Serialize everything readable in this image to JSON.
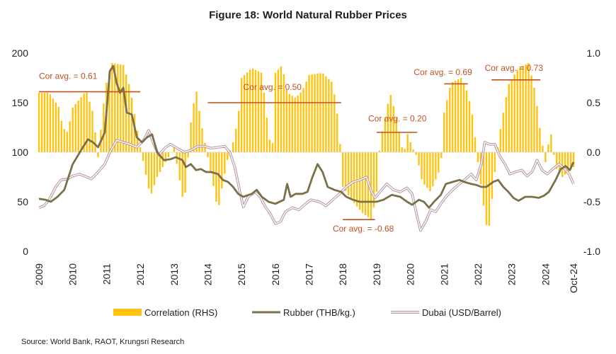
{
  "chart_data": {
    "type": "bar+line",
    "title": "Figure 18: World Natural Rubber Prices",
    "source": "Source: World Bank, RAOT, Krungsri Research",
    "left_axis": {
      "ticks": [
        "0",
        "50",
        "100",
        "150",
        "200"
      ],
      "range": [
        0,
        200
      ]
    },
    "right_axis": {
      "ticks": [
        "-1.0",
        "-0.5",
        "0.0",
        "0.5",
        "1.0"
      ],
      "range": [
        -1.0,
        1.0
      ]
    },
    "x_labels": [
      "2009",
      "2010",
      "2011",
      "2012",
      "2013",
      "2014",
      "2015",
      "2016",
      "2017",
      "2018",
      "2019",
      "2020",
      "2021",
      "2022",
      "2023",
      "2024",
      "Oct-24"
    ],
    "x_range": [
      2009.0,
      2024.83
    ],
    "legend": [
      "Correlation (RHS)",
      "Rubber (THB/kg.)",
      "Dubai (USD/Barrel)"
    ],
    "colors": {
      "correlation": "#FFC20E",
      "rubber": "#7A7049",
      "dubai_outer": "#B89AA3",
      "dubai_inner": "#ffffff",
      "annotation": "#C0521F"
    },
    "correlation_anchors": [
      [
        2009.0,
        0.6
      ],
      [
        2009.3,
        0.6
      ],
      [
        2009.6,
        0.45
      ],
      [
        2009.7,
        0.25
      ],
      [
        2009.85,
        0.2
      ],
      [
        2010.0,
        0.45
      ],
      [
        2010.4,
        0.62
      ],
      [
        2010.6,
        0.4
      ],
      [
        2010.75,
        -0.05
      ],
      [
        2010.9,
        0.45
      ],
      [
        2011.0,
        0.7
      ],
      [
        2011.15,
        0.9
      ],
      [
        2011.5,
        0.88
      ],
      [
        2011.7,
        0.65
      ],
      [
        2011.85,
        0.35
      ],
      [
        2012.0,
        0.05
      ],
      [
        2012.15,
        -0.2
      ],
      [
        2012.3,
        -0.45
      ],
      [
        2012.5,
        -0.25
      ],
      [
        2012.75,
        -0.1
      ],
      [
        2013.0,
        0.05
      ],
      [
        2013.15,
        -0.25
      ],
      [
        2013.3,
        -0.55
      ],
      [
        2013.5,
        0.3
      ],
      [
        2013.65,
        0.65
      ],
      [
        2013.8,
        0.3
      ],
      [
        2014.0,
        -0.05
      ],
      [
        2014.2,
        -0.4
      ],
      [
        2014.3,
        -0.6
      ],
      [
        2014.45,
        -0.3
      ],
      [
        2014.6,
        -0.05
      ],
      [
        2014.75,
        0.1
      ],
      [
        2014.9,
        0.35
      ],
      [
        2015.0,
        0.75
      ],
      [
        2015.3,
        0.85
      ],
      [
        2015.6,
        0.8
      ],
      [
        2015.75,
        0.35
      ],
      [
        2015.9,
        -0.05
      ],
      [
        2016.0,
        0.8
      ],
      [
        2016.2,
        0.88
      ],
      [
        2016.35,
        0.6
      ],
      [
        2016.6,
        0.55
      ],
      [
        2016.8,
        0.62
      ],
      [
        2017.0,
        0.78
      ],
      [
        2017.4,
        0.8
      ],
      [
        2017.7,
        0.7
      ],
      [
        2017.85,
        0.35
      ],
      [
        2017.95,
        -0.05
      ],
      [
        2018.0,
        -0.35
      ],
      [
        2018.3,
        -0.5
      ],
      [
        2018.6,
        -0.62
      ],
      [
        2018.85,
        -0.68
      ],
      [
        2019.0,
        -0.4
      ],
      [
        2019.1,
        0.1
      ],
      [
        2019.25,
        0.35
      ],
      [
        2019.4,
        0.6
      ],
      [
        2019.55,
        0.4
      ],
      [
        2019.7,
        0.15
      ],
      [
        2019.8,
        -0.05
      ],
      [
        2019.9,
        0.2
      ],
      [
        2020.05,
        0.05
      ],
      [
        2020.2,
        -0.05
      ],
      [
        2020.35,
        -0.3
      ],
      [
        2020.6,
        -0.4
      ],
      [
        2020.9,
        -0.15
      ],
      [
        2021.0,
        0.4
      ],
      [
        2021.2,
        0.7
      ],
      [
        2021.5,
        0.75
      ],
      [
        2021.7,
        0.6
      ],
      [
        2021.85,
        0.35
      ],
      [
        2022.0,
        -0.1
      ],
      [
        2022.15,
        -0.5
      ],
      [
        2022.3,
        -0.85
      ],
      [
        2022.5,
        -0.2
      ],
      [
        2022.6,
        0.1
      ],
      [
        2022.75,
        0.4
      ],
      [
        2022.9,
        0.68
      ],
      [
        2023.2,
        0.85
      ],
      [
        2023.5,
        0.9
      ],
      [
        2023.7,
        0.6
      ],
      [
        2023.85,
        0.2
      ],
      [
        2024.0,
        -0.1
      ],
      [
        2024.15,
        0.22
      ],
      [
        2024.3,
        -0.15
      ],
      [
        2024.5,
        -0.25
      ],
      [
        2024.83,
        -0.15
      ]
    ],
    "rubber_anchors": [
      [
        2009.0,
        53
      ],
      [
        2009.2,
        52
      ],
      [
        2009.35,
        50
      ],
      [
        2009.55,
        55
      ],
      [
        2009.75,
        62
      ],
      [
        2010.0,
        88
      ],
      [
        2010.3,
        105
      ],
      [
        2010.45,
        113
      ],
      [
        2010.6,
        110
      ],
      [
        2010.75,
        105
      ],
      [
        2010.95,
        120
      ],
      [
        2011.1,
        182
      ],
      [
        2011.2,
        187
      ],
      [
        2011.3,
        170
      ],
      [
        2011.4,
        160
      ],
      [
        2011.5,
        165
      ],
      [
        2011.6,
        140
      ],
      [
        2011.75,
        138
      ],
      [
        2011.9,
        115
      ],
      [
        2012.05,
        110
      ],
      [
        2012.2,
        115
      ],
      [
        2012.35,
        118
      ],
      [
        2012.5,
        100
      ],
      [
        2012.7,
        92
      ],
      [
        2012.9,
        93
      ],
      [
        2013.05,
        95
      ],
      [
        2013.25,
        92
      ],
      [
        2013.35,
        85
      ],
      [
        2013.5,
        88
      ],
      [
        2013.65,
        82
      ],
      [
        2013.8,
        83
      ],
      [
        2013.95,
        80
      ],
      [
        2014.1,
        80
      ],
      [
        2014.3,
        78
      ],
      [
        2014.45,
        72
      ],
      [
        2014.6,
        70
      ],
      [
        2014.75,
        65
      ],
      [
        2014.9,
        58
      ],
      [
        2015.05,
        55
      ],
      [
        2015.3,
        58
      ],
      [
        2015.45,
        62
      ],
      [
        2015.6,
        55
      ],
      [
        2015.8,
        50
      ],
      [
        2016.0,
        48
      ],
      [
        2016.25,
        52
      ],
      [
        2016.35,
        68
      ],
      [
        2016.45,
        55
      ],
      [
        2016.6,
        58
      ],
      [
        2016.8,
        58
      ],
      [
        2016.95,
        60
      ],
      [
        2017.1,
        75
      ],
      [
        2017.25,
        88
      ],
      [
        2017.4,
        80
      ],
      [
        2017.55,
        65
      ],
      [
        2017.75,
        62
      ],
      [
        2017.95,
        60
      ],
      [
        2018.1,
        55
      ],
      [
        2018.3,
        52
      ],
      [
        2018.5,
        50
      ],
      [
        2018.75,
        50
      ],
      [
        2019.0,
        50
      ],
      [
        2019.2,
        52
      ],
      [
        2019.45,
        57
      ],
      [
        2019.7,
        55
      ],
      [
        2019.9,
        50
      ],
      [
        2020.05,
        47
      ],
      [
        2020.25,
        52
      ],
      [
        2020.4,
        50
      ],
      [
        2020.55,
        44
      ],
      [
        2020.7,
        50
      ],
      [
        2020.9,
        57
      ],
      [
        2021.05,
        68
      ],
      [
        2021.25,
        70
      ],
      [
        2021.45,
        72
      ],
      [
        2021.6,
        70
      ],
      [
        2021.8,
        68
      ],
      [
        2021.95,
        67
      ],
      [
        2022.1,
        65
      ],
      [
        2022.25,
        65
      ],
      [
        2022.45,
        70
      ],
      [
        2022.6,
        72
      ],
      [
        2022.75,
        65
      ],
      [
        2022.9,
        60
      ],
      [
        2023.05,
        54
      ],
      [
        2023.2,
        51
      ],
      [
        2023.4,
        55
      ],
      [
        2023.6,
        55
      ],
      [
        2023.8,
        54
      ],
      [
        2023.95,
        56
      ],
      [
        2024.1,
        60
      ],
      [
        2024.3,
        72
      ],
      [
        2024.45,
        83
      ],
      [
        2024.6,
        86
      ],
      [
        2024.72,
        82
      ],
      [
        2024.83,
        90
      ]
    ],
    "dubai_anchors": [
      [
        2009.0,
        44
      ],
      [
        2009.15,
        46
      ],
      [
        2009.3,
        52
      ],
      [
        2009.5,
        65
      ],
      [
        2009.65,
        72
      ],
      [
        2009.85,
        73
      ],
      [
        2010.0,
        76
      ],
      [
        2010.2,
        78
      ],
      [
        2010.35,
        76
      ],
      [
        2010.55,
        73
      ],
      [
        2010.75,
        80
      ],
      [
        2010.95,
        88
      ],
      [
        2011.1,
        100
      ],
      [
        2011.3,
        112
      ],
      [
        2011.5,
        110
      ],
      [
        2011.7,
        108
      ],
      [
        2011.9,
        105
      ],
      [
        2012.1,
        112
      ],
      [
        2012.25,
        122
      ],
      [
        2012.4,
        108
      ],
      [
        2012.55,
        97
      ],
      [
        2012.75,
        105
      ],
      [
        2012.9,
        108
      ],
      [
        2013.1,
        104
      ],
      [
        2013.3,
        100
      ],
      [
        2013.5,
        102
      ],
      [
        2013.7,
        106
      ],
      [
        2013.9,
        106
      ],
      [
        2014.1,
        104
      ],
      [
        2014.3,
        105
      ],
      [
        2014.5,
        106
      ],
      [
        2014.65,
        100
      ],
      [
        2014.8,
        85
      ],
      [
        2014.95,
        60
      ],
      [
        2015.05,
        45
      ],
      [
        2015.2,
        55
      ],
      [
        2015.4,
        60
      ],
      [
        2015.55,
        55
      ],
      [
        2015.7,
        45
      ],
      [
        2015.85,
        38
      ],
      [
        2016.0,
        28
      ],
      [
        2016.15,
        30
      ],
      [
        2016.3,
        40
      ],
      [
        2016.5,
        44
      ],
      [
        2016.7,
        42
      ],
      [
        2016.9,
        48
      ],
      [
        2017.05,
        52
      ],
      [
        2017.3,
        50
      ],
      [
        2017.5,
        46
      ],
      [
        2017.7,
        52
      ],
      [
        2017.9,
        58
      ],
      [
        2018.1,
        65
      ],
      [
        2018.3,
        70
      ],
      [
        2018.5,
        72
      ],
      [
        2018.7,
        75
      ],
      [
        2018.85,
        60
      ],
      [
        2018.95,
        54
      ],
      [
        2019.1,
        60
      ],
      [
        2019.3,
        68
      ],
      [
        2019.5,
        62
      ],
      [
        2019.7,
        60
      ],
      [
        2019.9,
        64
      ],
      [
        2020.05,
        58
      ],
      [
        2020.2,
        35
      ],
      [
        2020.3,
        21
      ],
      [
        2020.45,
        30
      ],
      [
        2020.6,
        42
      ],
      [
        2020.75,
        40
      ],
      [
        2020.9,
        48
      ],
      [
        2021.05,
        55
      ],
      [
        2021.25,
        62
      ],
      [
        2021.45,
        68
      ],
      [
        2021.6,
        72
      ],
      [
        2021.8,
        78
      ],
      [
        2021.95,
        72
      ],
      [
        2022.1,
        88
      ],
      [
        2022.2,
        110
      ],
      [
        2022.35,
        108
      ],
      [
        2022.5,
        108
      ],
      [
        2022.65,
        96
      ],
      [
        2022.8,
        88
      ],
      [
        2022.95,
        78
      ],
      [
        2023.1,
        80
      ],
      [
        2023.3,
        82
      ],
      [
        2023.45,
        76
      ],
      [
        2023.6,
        80
      ],
      [
        2023.75,
        92
      ],
      [
        2023.9,
        82
      ],
      [
        2024.05,
        78
      ],
      [
        2024.25,
        84
      ],
      [
        2024.4,
        88
      ],
      [
        2024.55,
        84
      ],
      [
        2024.7,
        78
      ],
      [
        2024.83,
        68
      ]
    ],
    "avg_lines": [
      {
        "label": "Cor avg. = 0.61",
        "x0": 2009.0,
        "x1": 2012.0,
        "y": 0.61,
        "label_x": 2009.0,
        "label_y": 0.74
      },
      {
        "label": "Cor avg. = 0.50",
        "x0": 2014.0,
        "x1": 2017.95,
        "y": 0.5,
        "label_x": 2015.05,
        "label_y": 0.63
      },
      {
        "label": "Cor avg. = 0.20",
        "x0": 2019.0,
        "x1": 2020.2,
        "y": 0.2,
        "label_x": 2018.75,
        "label_y": 0.31
      },
      {
        "label": "Cor avg. = 0.69",
        "x0": 2021.0,
        "x1": 2021.7,
        "y": 0.69,
        "label_x": 2020.1,
        "label_y": 0.78
      },
      {
        "label": "Cor avg. = 0.73",
        "x0": 2022.4,
        "x1": 2023.85,
        "y": 0.73,
        "label_x": 2022.2,
        "label_y": 0.82
      },
      {
        "label": "Cor avg. = -0.68",
        "x0": 2018.0,
        "x1": 2018.95,
        "y": -0.68,
        "label_x": 2017.7,
        "label_y": -0.8
      }
    ]
  }
}
